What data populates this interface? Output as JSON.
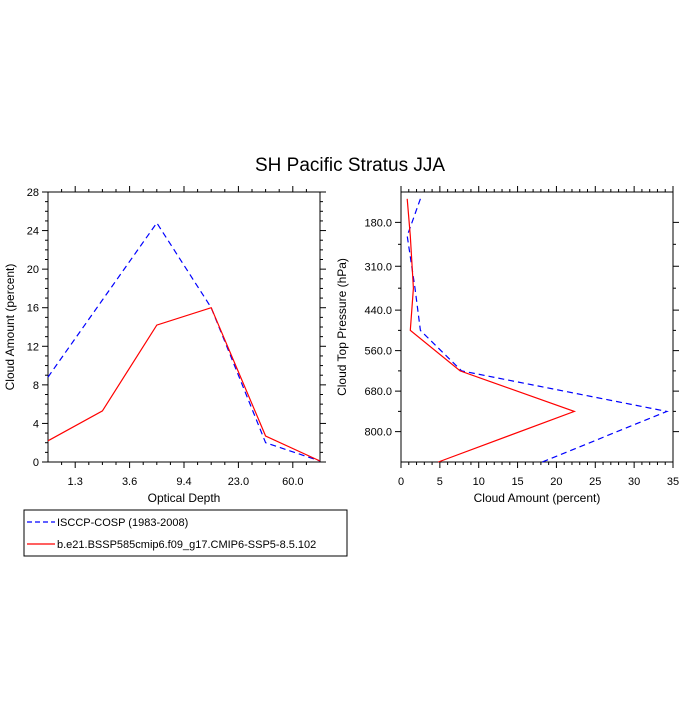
{
  "title": "SH Pacific Stratus JJA",
  "legend": {
    "entries": [
      {
        "label": "ISCCP-COSP (1983-2008)",
        "color": "#0000ff",
        "style": "dashed"
      },
      {
        "label": "b.e21.BSSP585cmip6.f09_g17.CMIP6-SSP5-8.5.102",
        "color": "#ff0000",
        "style": "solid"
      }
    ]
  },
  "chart_data": [
    {
      "type": "line",
      "xlabel": "Optical Depth",
      "ylabel": "Cloud Amount (percent)",
      "x_tick_labels": [
        "1.3",
        "3.6",
        "9.4",
        "23.0",
        "60.0"
      ],
      "x_tick_positions": [
        1,
        2,
        3,
        4,
        5
      ],
      "xlim": [
        0.5,
        5.5
      ],
      "ylim": [
        0,
        28
      ],
      "y_ticks": [
        0,
        4,
        8,
        12,
        16,
        20,
        24,
        28
      ],
      "series": [
        {
          "name": "ISCCP-COSP (1983-2008)",
          "color": "#0000ff",
          "dashed": true,
          "x": [
            0.5,
            1.5,
            2.5,
            3.5,
            4.5,
            5.5
          ],
          "y": [
            8.8,
            16.8,
            24.8,
            16.0,
            2.0,
            0.1
          ]
        },
        {
          "name": "b.e21.BSSP585cmip6.f09_g17.CMIP6-SSP5-8.5.102",
          "color": "#ff0000",
          "dashed": false,
          "x": [
            0.5,
            1.5,
            2.5,
            3.5,
            4.5,
            5.5
          ],
          "y": [
            2.2,
            5.3,
            14.2,
            16.0,
            2.7,
            0.1
          ]
        }
      ]
    },
    {
      "type": "line",
      "xlabel": "Cloud Amount (percent)",
      "ylabel": "Cloud Top Pressure (hPa)",
      "xlim": [
        0,
        35
      ],
      "x_ticks": [
        0,
        5,
        10,
        15,
        20,
        25,
        30,
        35
      ],
      "ylim": [
        90,
        890
      ],
      "y_reversed": true,
      "y_tick_values": [
        180,
        310,
        440,
        560,
        680,
        800
      ],
      "y_tick_labels": [
        "180.0",
        "310.0",
        "440.0",
        "560.0",
        "680.0",
        "800.0"
      ],
      "series": [
        {
          "name": "ISCCP-COSP (1983-2008)",
          "color": "#0000ff",
          "dashed": true,
          "x": [
            2.5,
            0.8,
            1.8,
            2.5,
            7.8,
            34.2,
            18.2
          ],
          "y": [
            110,
            220,
            375,
            500,
            620,
            740,
            890
          ]
        },
        {
          "name": "b.e21.BSSP585cmip6.f09_g17.CMIP6-SSP5-8.5.102",
          "color": "#ff0000",
          "dashed": false,
          "x": [
            0.8,
            1.2,
            1.6,
            1.2,
            7.6,
            22.3,
            4.8
          ],
          "y": [
            110,
            220,
            375,
            500,
            620,
            740,
            890
          ]
        }
      ]
    }
  ]
}
